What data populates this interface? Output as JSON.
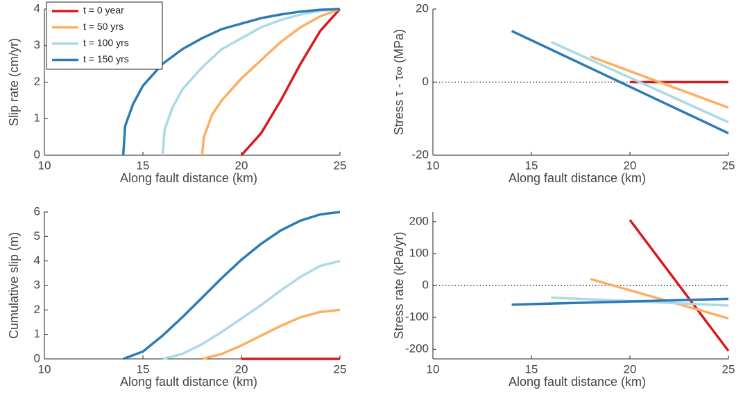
{
  "chart_data": [
    {
      "type": "line",
      "xlabel": "Along fault distance (km)",
      "ylabel": "Slip rate (cm/yr)",
      "xlim": [
        10,
        25
      ],
      "xticks": [
        10,
        15,
        20,
        25
      ],
      "ylim": [
        0,
        4
      ],
      "yticks": [
        0,
        1,
        2,
        3,
        4
      ],
      "legend": "upper left",
      "series": [
        {
          "name": "t = 0 year",
          "color": "#d7191c",
          "x": [
            20,
            21,
            22,
            23,
            24,
            25
          ],
          "values": [
            0,
            0.6,
            1.5,
            2.5,
            3.4,
            4
          ]
        },
        {
          "name": "t = 50 yrs",
          "color": "#fdae61",
          "x": [
            18,
            18.1,
            18.5,
            19,
            20,
            21,
            22,
            23,
            24,
            25
          ],
          "values": [
            0,
            0.5,
            1.1,
            1.5,
            2.1,
            2.6,
            3.1,
            3.5,
            3.8,
            4
          ]
        },
        {
          "name": "t = 100 yrs",
          "color": "#abd9e9",
          "x": [
            16,
            16.1,
            16.5,
            17,
            18,
            19,
            20,
            21,
            22,
            23,
            24,
            25
          ],
          "values": [
            0,
            0.7,
            1.3,
            1.8,
            2.4,
            2.9,
            3.2,
            3.5,
            3.7,
            3.85,
            3.95,
            4
          ]
        },
        {
          "name": "t = 150 yrs",
          "color": "#2c7bb6",
          "x": [
            14,
            14.1,
            14.5,
            15,
            16,
            17,
            18,
            19,
            20,
            21,
            22,
            23,
            24,
            25
          ],
          "values": [
            0,
            0.8,
            1.4,
            1.9,
            2.5,
            2.9,
            3.2,
            3.45,
            3.6,
            3.75,
            3.85,
            3.93,
            3.98,
            4
          ]
        }
      ]
    },
    {
      "type": "line",
      "xlabel": "Along fault distance (km)",
      "ylabel": "Stress  τ - τ∞ (MPa)",
      "xlim": [
        10,
        25
      ],
      "xticks": [
        10,
        15,
        20,
        25
      ],
      "ylim": [
        -20,
        20
      ],
      "yticks": [
        -20,
        0,
        20
      ],
      "reference_line": 0,
      "series": [
        {
          "color": "#d7191c",
          "x": [
            20,
            25
          ],
          "values": [
            0,
            0
          ]
        },
        {
          "color": "#fdae61",
          "x": [
            18,
            25
          ],
          "values": [
            7,
            -7
          ]
        },
        {
          "color": "#abd9e9",
          "x": [
            16,
            25
          ],
          "values": [
            11,
            -11
          ]
        },
        {
          "color": "#2c7bb6",
          "x": [
            14,
            25
          ],
          "values": [
            14,
            -14
          ]
        }
      ]
    },
    {
      "type": "line",
      "xlabel": "Along fault distance (km)",
      "ylabel": "Cumulative slip (m)",
      "xlim": [
        10,
        25
      ],
      "xticks": [
        10,
        15,
        20,
        25
      ],
      "ylim": [
        0,
        6
      ],
      "yticks": [
        0,
        1,
        2,
        3,
        4,
        5,
        6
      ],
      "series": [
        {
          "color": "#d7191c",
          "x": [
            20,
            25
          ],
          "values": [
            0,
            0
          ]
        },
        {
          "color": "#fdae61",
          "x": [
            18,
            19,
            20,
            21,
            22,
            23,
            24,
            25
          ],
          "values": [
            0,
            0.2,
            0.55,
            0.95,
            1.35,
            1.7,
            1.92,
            2
          ]
        },
        {
          "color": "#abd9e9",
          "x": [
            16,
            17,
            18,
            19,
            20,
            21,
            22,
            23,
            24,
            25
          ],
          "values": [
            0,
            0.2,
            0.6,
            1.1,
            1.65,
            2.2,
            2.8,
            3.35,
            3.8,
            4
          ]
        },
        {
          "color": "#2c7bb6",
          "x": [
            14,
            15,
            16,
            17,
            18,
            19,
            20,
            21,
            22,
            23,
            24,
            25
          ],
          "values": [
            0,
            0.3,
            0.95,
            1.7,
            2.5,
            3.3,
            4.05,
            4.7,
            5.25,
            5.65,
            5.9,
            6
          ]
        }
      ]
    },
    {
      "type": "line",
      "xlabel": "Along fault distance (km)",
      "ylabel": "Stress rate (kPa/yr)",
      "xlim": [
        10,
        25
      ],
      "xticks": [
        10,
        15,
        20,
        25
      ],
      "ylim": [
        -230,
        230
      ],
      "yticks": [
        -200,
        -100,
        0,
        100,
        200
      ],
      "reference_line": 0,
      "series": [
        {
          "color": "#d7191c",
          "x": [
            20,
            25
          ],
          "values": [
            205,
            -205
          ]
        },
        {
          "color": "#fdae61",
          "x": [
            18,
            25
          ],
          "values": [
            20,
            -103
          ]
        },
        {
          "color": "#abd9e9",
          "x": [
            16,
            25
          ],
          "values": [
            -38,
            -63
          ]
        },
        {
          "color": "#2c7bb6",
          "x": [
            14,
            25
          ],
          "values": [
            -60,
            -42
          ]
        }
      ]
    }
  ]
}
